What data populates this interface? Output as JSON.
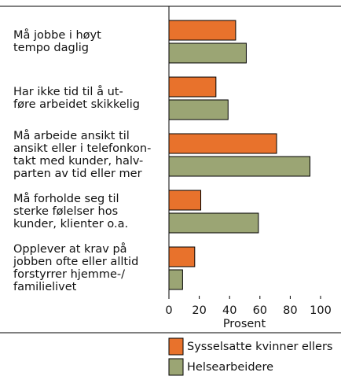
{
  "chart_data": {
    "type": "barh",
    "categories": [
      [
        "Må jobbe i høyt",
        "tempo daglig"
      ],
      [
        "Har ikke tid til å ut-",
        "føre arbeidet skikkelig"
      ],
      [
        "Må arbeide ansikt til",
        "ansikt eller i telefonkon-",
        "takt med kunder, halv-",
        "parten av tid eller mer"
      ],
      [
        "Må forholde seg til",
        "sterke følelser hos",
        "kunder, klienter o.a."
      ],
      [
        "Opplever at krav på",
        "jobben ofte eller alltid",
        "forstyrrer hjemme-/",
        "familielivet"
      ]
    ],
    "series": [
      {
        "name": "Sysselsatte kvinner ellers",
        "color": "#e8722c",
        "values": [
          44,
          31,
          71,
          21,
          17
        ]
      },
      {
        "name": "Helsearbeidere",
        "color": "#9ba574",
        "values": [
          51,
          39,
          93,
          59,
          9
        ]
      }
    ],
    "xlabel": "Prosent",
    "xlim": [
      0,
      100
    ],
    "xticks": [
      0,
      20,
      40,
      60,
      80,
      100
    ],
    "grid": false,
    "legend": "bottom"
  }
}
